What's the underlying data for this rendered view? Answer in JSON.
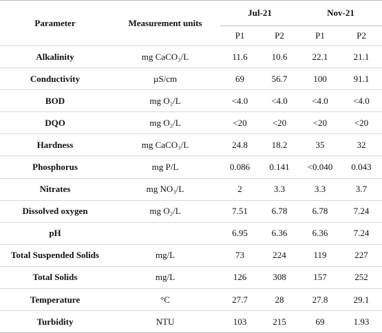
{
  "table": {
    "header": {
      "parameter": "Parameter",
      "units": "Measurement units",
      "groups": [
        {
          "label": "Jul-21",
          "columns": [
            "P1",
            "P2"
          ]
        },
        {
          "label": "Nov-21",
          "columns": [
            "P1",
            "P2"
          ]
        }
      ]
    },
    "rows": [
      [
        "Alkalinity",
        "mg CaCO₃/L",
        "11.6",
        "10.6",
        "22.1",
        "21.1"
      ],
      [
        "Conductivity",
        "µS/cm",
        "69",
        "56.7",
        "100",
        "91.1"
      ],
      [
        "BOD",
        "mg O₂/L",
        "<4.0",
        "<4.0",
        "<4.0",
        "<4.0"
      ],
      [
        "DQO",
        "mg O₂/L",
        "<20",
        "<20",
        "<20",
        "<20"
      ],
      [
        "Hardness",
        "mg CaCO₃/L",
        "24.8",
        "18.2",
        "35",
        "32"
      ],
      [
        "Phosphorus",
        "mg P/L",
        "0.086",
        "0.141",
        "<0.040",
        "0.043"
      ],
      [
        "Nitrates",
        "mg NO₃/L",
        "2",
        "3.3",
        "3.3",
        "3.7"
      ],
      [
        "Dissolved oxygen",
        "mg O₂/L",
        "7.51",
        "6.78",
        "6.78",
        "7.24"
      ],
      [
        "pH",
        "",
        "6.95",
        "6.36",
        "6.36",
        "7.24"
      ],
      [
        "Total Suspended Solids",
        "mg/L",
        "73",
        "224",
        "119",
        "227"
      ],
      [
        "Total Solids",
        "mg/L",
        "126",
        "308",
        "157",
        "252"
      ],
      [
        "Temperature",
        "°C",
        "27.7",
        "28",
        "27.8",
        "29.1"
      ],
      [
        "Turbidity",
        "NTU",
        "103",
        "215",
        "69",
        "1.93"
      ]
    ]
  }
}
